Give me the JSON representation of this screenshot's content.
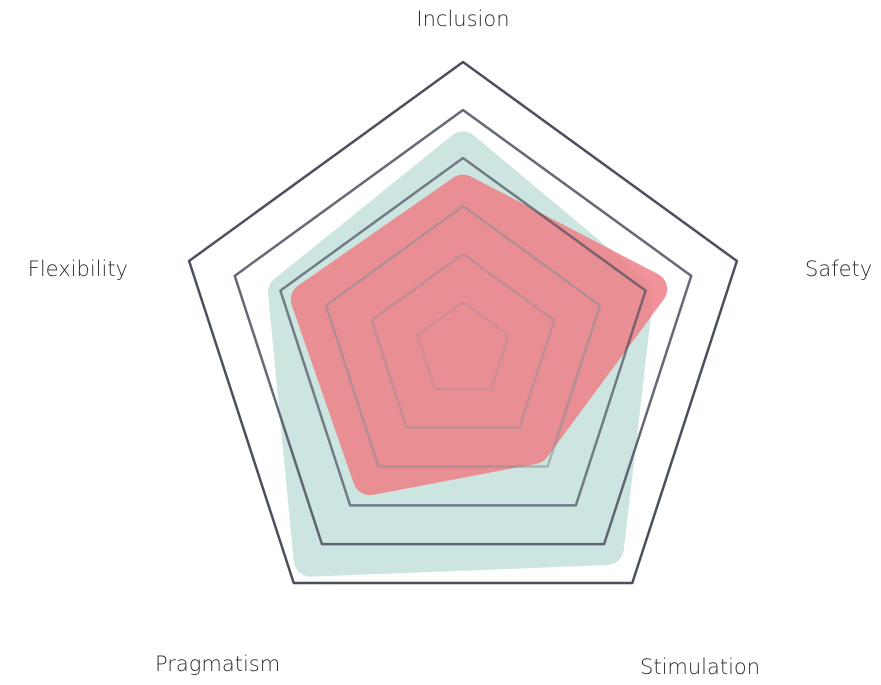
{
  "chart_data": {
    "type": "radar",
    "categories": [
      "Inclusion",
      "Safety",
      "Stimulation",
      "Pragmatism",
      "Flexibility"
    ],
    "series": [
      {
        "color": "#b9dbd3",
        "values": [
          4.2,
          3.8,
          5.1,
          5.4,
          3.9
        ]
      },
      {
        "color": "#ee7f86",
        "values": [
          3.3,
          4.1,
          2.5,
          3.3,
          3.4
        ]
      }
    ],
    "rlim": [
      0,
      6
    ],
    "rticks": [
      1,
      2,
      3,
      4,
      5,
      6
    ]
  }
}
